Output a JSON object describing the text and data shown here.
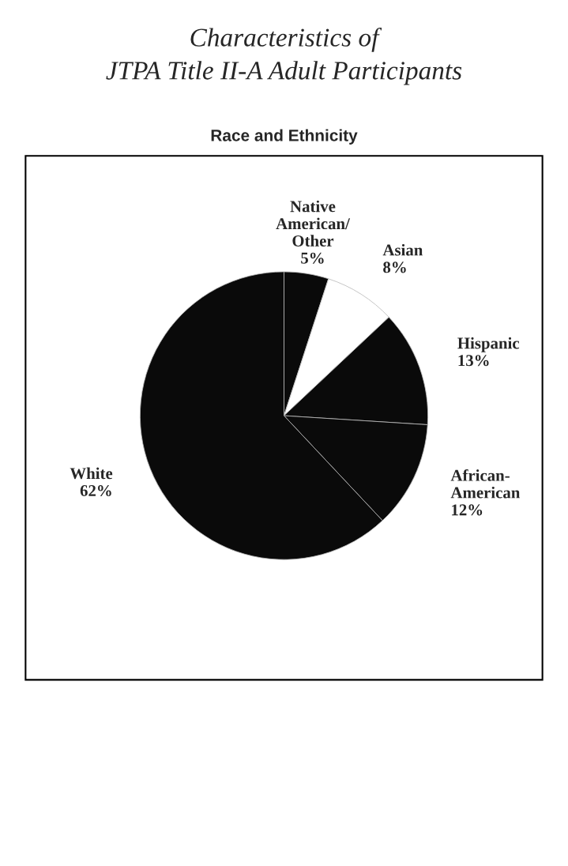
{
  "chart_data": {
    "type": "pie",
    "title": "Characteristics of\nJTPA Title II-A Adult Participants",
    "subtitle": "Race and Ethnicity",
    "categories": [
      "Native\nAmerican/\nOther",
      "Asian",
      "Hispanic",
      "African-\nAmerican",
      "White"
    ],
    "values": [
      5,
      8,
      13,
      12,
      62
    ],
    "value_labels": [
      "5%",
      "8%",
      "13%",
      "12%",
      "62%"
    ],
    "colors": [
      "#0a0a0a",
      "#ffffff",
      "#0a0a0a",
      "#0a0a0a",
      "#0a0a0a"
    ]
  }
}
